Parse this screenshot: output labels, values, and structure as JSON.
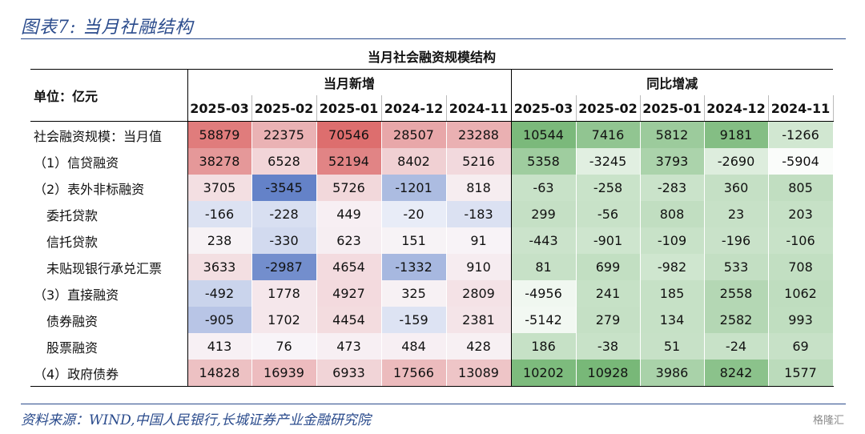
{
  "figure_title": "图表7:  当月社融结构",
  "source": "资料来源：WIND,中国人民银行,长城证券产业金融研究院",
  "watermark": "格隆汇",
  "table": {
    "title": "当月社会融资规模结构",
    "unit_label": "单位：亿元",
    "group_new": "当月新增",
    "group_yoy": "同比增减",
    "columns": [
      "2025-03",
      "2025-02",
      "2025-01",
      "2024-12",
      "2024-11",
      "2025-03",
      "2025-02",
      "2025-01",
      "2024-12",
      "2024-11"
    ],
    "rows": [
      {
        "label": "社会融资规模：当月值",
        "indent": false,
        "new": [
          58879,
          22375,
          70546,
          28507,
          23288
        ],
        "yoy": [
          10544,
          7416,
          5812,
          9181,
          -1266
        ]
      },
      {
        "label": "（1）信贷融资",
        "indent": false,
        "new": [
          38278,
          6528,
          52194,
          8402,
          5216
        ],
        "yoy": [
          5358,
          -3245,
          3793,
          -2690,
          -5904
        ]
      },
      {
        "label": "（2）表外非标融资",
        "indent": false,
        "new": [
          3705,
          -3545,
          5726,
          -1201,
          818
        ],
        "yoy": [
          -63,
          -258,
          -283,
          360,
          805
        ]
      },
      {
        "label": "委托贷款",
        "indent": true,
        "new": [
          -166,
          -228,
          449,
          -20,
          -183
        ],
        "yoy": [
          299,
          -56,
          808,
          23,
          203
        ]
      },
      {
        "label": "信托贷款",
        "indent": true,
        "new": [
          238,
          -330,
          623,
          151,
          91
        ],
        "yoy": [
          -443,
          -901,
          -109,
          -196,
          -106
        ]
      },
      {
        "label": "未贴现银行承兑汇票",
        "indent": true,
        "new": [
          3633,
          -2987,
          4654,
          -1332,
          910
        ],
        "yoy": [
          81,
          699,
          -982,
          533,
          708
        ]
      },
      {
        "label": "（3）直接融资",
        "indent": false,
        "new": [
          -492,
          1778,
          4927,
          325,
          2809
        ],
        "yoy": [
          -4956,
          241,
          185,
          2558,
          1062
        ]
      },
      {
        "label": "债券融资",
        "indent": true,
        "new": [
          -905,
          1702,
          4454,
          -159,
          2381
        ],
        "yoy": [
          -5142,
          279,
          134,
          2582,
          993
        ]
      },
      {
        "label": "股票融资",
        "indent": true,
        "new": [
          413,
          76,
          473,
          484,
          428
        ],
        "yoy": [
          186,
          -38,
          51,
          -24,
          69
        ]
      },
      {
        "label": "（4）政府债券",
        "indent": false,
        "new": [
          14828,
          16939,
          6933,
          17566,
          13089
        ],
        "yoy": [
          10202,
          10928,
          3986,
          8242,
          1577
        ]
      }
    ]
  }
}
